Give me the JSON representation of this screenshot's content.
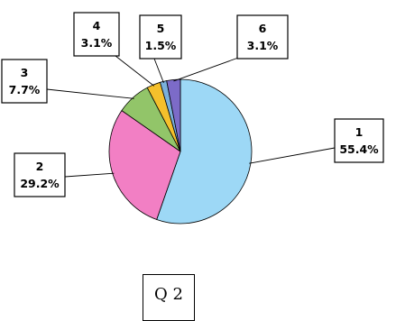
{
  "chart_data": {
    "type": "pie",
    "title": "",
    "slices": [
      {
        "name": "1",
        "value": 55.4,
        "label": "55.4%",
        "color": "#9dd8f6"
      },
      {
        "name": "2",
        "value": 29.2,
        "label": "29.2%",
        "color": "#f27fc4"
      },
      {
        "name": "3",
        "value": 7.7,
        "label": "7.7%",
        "color": "#92c569"
      },
      {
        "name": "4",
        "value": 3.1,
        "label": "3.1%",
        "color": "#f5c02c"
      },
      {
        "name": "5",
        "value": 1.5,
        "label": "1.5%",
        "color": "#7ab0db"
      },
      {
        "name": "6",
        "value": 3.1,
        "label": "3.1%",
        "color": "#7c6bc8"
      }
    ],
    "legend": "none",
    "data_labels": "callout-boxes"
  },
  "footer": {
    "question_label": "Q 2"
  }
}
